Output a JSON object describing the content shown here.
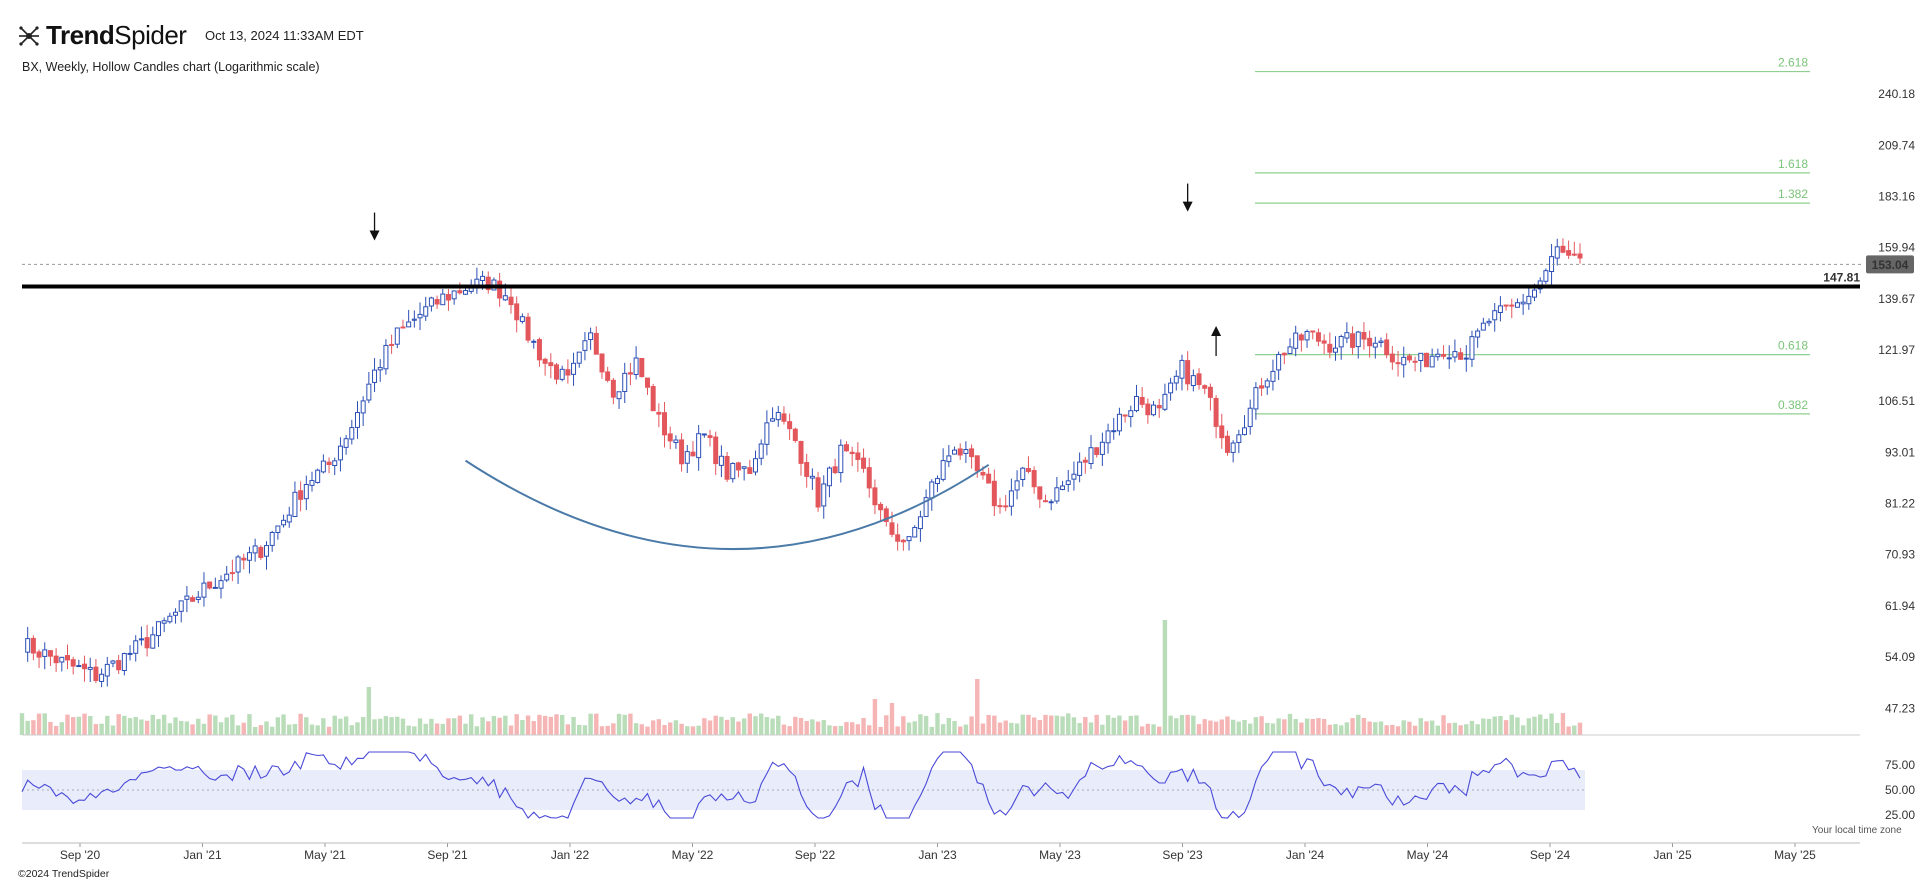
{
  "header": {
    "brand": "TrendSpider",
    "brand_bold": "Trend",
    "brand_light": "Spider",
    "timestamp": "Oct 13, 2024 11:33AM EDT",
    "subtitle": "BX, Weekly, Hollow Candles chart (Logarithmic scale)"
  },
  "footer": {
    "copyright": "©2024 TrendSpider",
    "timezone_note": "Your local time zone"
  },
  "colors": {
    "up": "#2b4fb5",
    "down": "#e2565c",
    "vol_up": "#b9dcb9",
    "vol_down": "#f5b5b5",
    "fib": "#8fcf8f",
    "rsi_line": "#4a4ad8",
    "rsi_band": "#e8ecfb",
    "cup_curve": "#4a7aa8",
    "resistance": "#000000",
    "price_badge": "#666666"
  },
  "chart_data": {
    "type": "candlestick",
    "symbol": "BX",
    "interval": "Weekly",
    "style": "Hollow Candles",
    "scale": "log",
    "x_ticks": [
      "Sep '20",
      "Jan '21",
      "May '21",
      "Sep '21",
      "Jan '22",
      "May '22",
      "Sep '22",
      "Jan '23",
      "May '23",
      "Sep '23",
      "Jan '24",
      "May '24",
      "Sep '24",
      "Jan '25",
      "May '25"
    ],
    "y_ticks": [
      "240.18",
      "209.74",
      "183.16",
      "159.94",
      "139.67",
      "121.97",
      "106.51",
      "93.01",
      "81.22",
      "70.93",
      "61.94",
      "54.09",
      "47.23"
    ],
    "ylim": [
      44,
      270
    ],
    "last_price": "153.04",
    "resistance_level": "147.81",
    "fib_levels": [
      {
        "label": "2.618",
        "value": 255
      },
      {
        "label": "1.618",
        "value": 195
      },
      {
        "label": "1.382",
        "value": 180
      },
      {
        "label": "0.618",
        "value": 120.5
      },
      {
        "label": "0.382",
        "value": 103
      }
    ],
    "rsi": {
      "ticks": [
        "75.00",
        "50.00",
        "25.00"
      ],
      "band": [
        30,
        70
      ],
      "mid": 50
    },
    "annotations": {
      "arrows": [
        {
          "week": 62,
          "value": 163,
          "direction": "down"
        },
        {
          "week": 205,
          "value": 176,
          "direction": "down"
        },
        {
          "week": 210,
          "value": 130,
          "direction": "up"
        }
      ],
      "cup": {
        "start_week": 78,
        "mid_week": 125,
        "end_week": 170,
        "start_value": 91,
        "bottom_value": 72,
        "end_value": 90
      }
    },
    "price_anchors": [
      [
        0,
        56
      ],
      [
        8,
        53
      ],
      [
        13,
        51.5
      ],
      [
        17,
        53.5
      ],
      [
        22,
        56.5
      ],
      [
        28,
        61.5
      ],
      [
        33,
        65.5
      ],
      [
        38,
        69
      ],
      [
        42,
        72
      ],
      [
        46,
        78
      ],
      [
        50,
        86
      ],
      [
        54,
        90
      ],
      [
        58,
        100
      ],
      [
        62,
        115
      ],
      [
        66,
        127
      ],
      [
        70,
        134
      ],
      [
        74,
        140
      ],
      [
        78,
        144
      ],
      [
        82,
        146
      ],
      [
        86,
        140
      ],
      [
        88,
        130
      ],
      [
        92,
        118
      ],
      [
        96,
        112
      ],
      [
        100,
        126
      ],
      [
        104,
        110
      ],
      [
        108,
        118
      ],
      [
        112,
        101
      ],
      [
        116,
        92
      ],
      [
        120,
        97
      ],
      [
        124,
        88
      ],
      [
        128,
        89
      ],
      [
        132,
        104
      ],
      [
        136,
        96
      ],
      [
        140,
        82
      ],
      [
        144,
        93
      ],
      [
        148,
        88
      ],
      [
        152,
        76
      ],
      [
        156,
        73
      ],
      [
        160,
        85
      ],
      [
        164,
        95
      ],
      [
        168,
        88
      ],
      [
        172,
        80
      ],
      [
        176,
        88
      ],
      [
        180,
        82
      ],
      [
        184,
        86
      ],
      [
        188,
        93
      ],
      [
        192,
        100
      ],
      [
        196,
        107
      ],
      [
        200,
        103
      ],
      [
        204,
        116
      ],
      [
        208,
        109
      ],
      [
        212,
        95
      ],
      [
        216,
        104
      ],
      [
        218,
        112
      ],
      [
        222,
        122
      ],
      [
        226,
        127
      ],
      [
        230,
        124
      ],
      [
        234,
        125
      ],
      [
        238,
        126
      ],
      [
        242,
        119
      ],
      [
        246,
        118
      ],
      [
        250,
        123
      ],
      [
        254,
        121
      ],
      [
        258,
        132
      ],
      [
        262,
        136
      ],
      [
        266,
        143
      ],
      [
        268,
        150
      ],
      [
        270,
        159
      ],
      [
        272,
        155
      ],
      [
        274,
        153
      ]
    ]
  }
}
